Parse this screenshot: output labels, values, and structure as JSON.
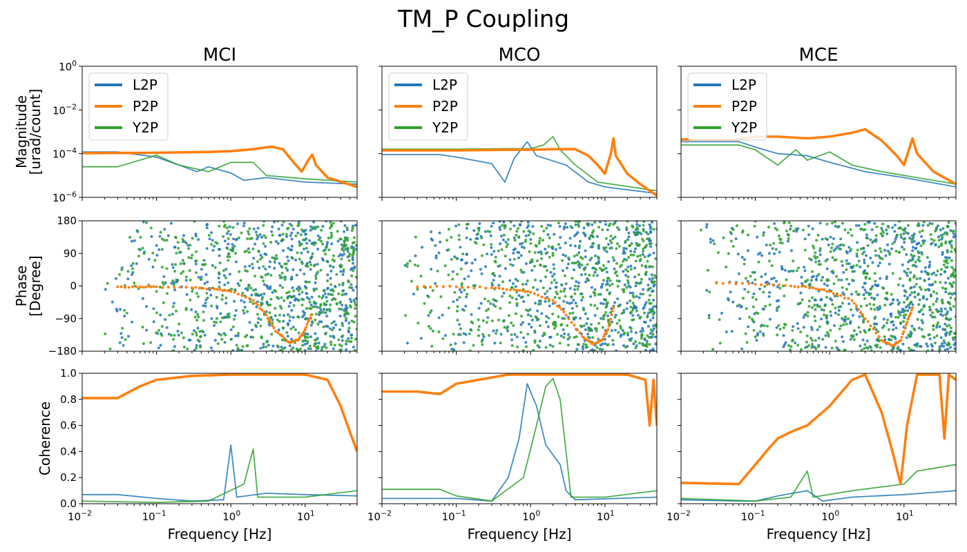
{
  "figure": {
    "title": "TM_P Coupling"
  },
  "colors": {
    "L2P": "#1f77b4",
    "P2P": "#ff7f0e",
    "Y2P": "#2ca02c"
  },
  "columns": [
    "MCI",
    "MCO",
    "MCE"
  ],
  "rows": {
    "magnitude": {
      "ylabel": [
        "Magnitude",
        "[urad/count]"
      ],
      "scale": "log",
      "ylim": [
        1e-06,
        1
      ],
      "ytick_exponents": [
        -6,
        -4,
        -2,
        0
      ]
    },
    "phase": {
      "ylabel": [
        "Phase",
        "[Degree]"
      ],
      "scale": "linear",
      "ylim": [
        -180,
        180
      ],
      "yticks": [
        -180,
        -90,
        0,
        90,
        180
      ],
      "ytick_labels": [
        "−180",
        "−90",
        "0",
        "90",
        "180"
      ]
    },
    "coherence": {
      "ylabel": [
        "Coherence"
      ],
      "scale": "linear",
      "ylim": [
        0,
        1
      ],
      "yticks": [
        0,
        0.2,
        0.4,
        0.6,
        0.8,
        1.0
      ],
      "ytick_labels": [
        "0.0",
        "0.2",
        "0.4",
        "0.6",
        "0.8",
        "1.0"
      ]
    }
  },
  "xaxis": {
    "label": "Frequency [Hz]",
    "scale": "log",
    "xlim": [
      0.01,
      50
    ],
    "tick_exponents": [
      -2,
      -1,
      0,
      1
    ]
  },
  "legend": {
    "entries": [
      "L2P",
      "P2P",
      "Y2P"
    ],
    "placement": "upper-left of magnitude panels"
  },
  "chart_data": [
    {
      "panel": "MCI",
      "type": "line",
      "magnitude": {
        "L2P": [
          [
            0.01,
            0.00012
          ],
          [
            0.03,
            0.00012
          ],
          [
            0.1,
            7e-05
          ],
          [
            0.2,
            3e-05
          ],
          [
            0.35,
            1.5e-05
          ],
          [
            0.5,
            2.5e-05
          ],
          [
            1,
            1.3e-05
          ],
          [
            1.5,
            6e-06
          ],
          [
            3,
            8e-06
          ],
          [
            10,
            5e-06
          ],
          [
            50,
            4e-06
          ]
        ],
        "P2P": [
          [
            0.01,
            0.000105
          ],
          [
            0.1,
            0.00011
          ],
          [
            0.5,
            0.00012
          ],
          [
            1,
            0.00013
          ],
          [
            2,
            0.00016
          ],
          [
            3.5,
            0.00021
          ],
          [
            5,
            0.00016
          ],
          [
            7,
            4e-05
          ],
          [
            9,
            1.5e-05
          ],
          [
            11,
            5e-05
          ],
          [
            12.5,
            9e-05
          ],
          [
            14,
            3e-05
          ],
          [
            20,
            8e-06
          ],
          [
            50,
            3e-06
          ]
        ],
        "Y2P": [
          [
            0.01,
            2.5e-05
          ],
          [
            0.03,
            2.5e-05
          ],
          [
            0.1,
            8.5e-05
          ],
          [
            0.2,
            3e-05
          ],
          [
            0.5,
            1.5e-05
          ],
          [
            1,
            4e-05
          ],
          [
            2,
            4e-05
          ],
          [
            3,
            1e-05
          ],
          [
            10,
            7e-06
          ],
          [
            50,
            5e-06
          ]
        ]
      },
      "phase": {
        "P2P": [
          [
            0.03,
            -2
          ],
          [
            0.06,
            -2
          ],
          [
            0.1,
            -2
          ],
          [
            0.3,
            -5
          ],
          [
            0.6,
            -8
          ],
          [
            1,
            -15
          ],
          [
            2,
            -40
          ],
          [
            3,
            -80
          ],
          [
            4,
            -125
          ],
          [
            6,
            -155
          ],
          [
            8,
            -150
          ],
          [
            10,
            -120
          ],
          [
            12,
            -80
          ]
        ],
        "L2P_scatter": "dense random phases increasing with frequency",
        "Y2P_scatter": "dense random phases increasing with frequency"
      },
      "coherence": {
        "L2P": [
          [
            0.01,
            0.07
          ],
          [
            0.03,
            0.07
          ],
          [
            0.1,
            0.04
          ],
          [
            0.3,
            0.02
          ],
          [
            0.8,
            0.03
          ],
          [
            1.0,
            0.45
          ],
          [
            1.2,
            0.05
          ],
          [
            3,
            0.08
          ],
          [
            10,
            0.07
          ],
          [
            50,
            0.06
          ]
        ],
        "P2P": [
          [
            0.01,
            0.81
          ],
          [
            0.03,
            0.81
          ],
          [
            0.06,
            0.9
          ],
          [
            0.1,
            0.95
          ],
          [
            0.3,
            0.98
          ],
          [
            1,
            0.99
          ],
          [
            10,
            0.99
          ],
          [
            20,
            0.95
          ],
          [
            30,
            0.75
          ],
          [
            40,
            0.55
          ],
          [
            50,
            0.4
          ]
        ],
        "Y2P": [
          [
            0.01,
            0.02
          ],
          [
            0.1,
            0.01
          ],
          [
            0.5,
            0.02
          ],
          [
            1.5,
            0.15
          ],
          [
            2.0,
            0.42
          ],
          [
            2.3,
            0.05
          ],
          [
            10,
            0.05
          ],
          [
            50,
            0.1
          ]
        ]
      }
    },
    {
      "panel": "MCO",
      "type": "line",
      "magnitude": {
        "L2P": [
          [
            0.01,
            9e-05
          ],
          [
            0.06,
            9e-05
          ],
          [
            0.1,
            7e-05
          ],
          [
            0.3,
            3.5e-05
          ],
          [
            0.45,
            5e-06
          ],
          [
            0.6,
            6e-05
          ],
          [
            0.9,
            0.00035
          ],
          [
            1.2,
            8e-05
          ],
          [
            3,
            3e-05
          ],
          [
            6,
            5e-06
          ],
          [
            10,
            3e-06
          ],
          [
            50,
            1.5e-06
          ]
        ],
        "P2P": [
          [
            0.01,
            0.00014
          ],
          [
            0.1,
            0.00014
          ],
          [
            0.5,
            0.00015
          ],
          [
            1,
            0.00015
          ],
          [
            2,
            0.00016
          ],
          [
            4,
            0.00016
          ],
          [
            6,
            8e-05
          ],
          [
            8,
            3e-05
          ],
          [
            10,
            1.2e-05
          ],
          [
            12,
            0.0001
          ],
          [
            13,
            0.0005
          ],
          [
            14,
            8e-05
          ],
          [
            20,
            1.2e-05
          ],
          [
            30,
            4e-06
          ],
          [
            50,
            1.2e-06
          ]
        ],
        "Y2P": [
          [
            0.01,
            0.00016
          ],
          [
            0.1,
            0.00016
          ],
          [
            0.5,
            0.00017
          ],
          [
            1,
            0.00017
          ],
          [
            1.5,
            0.00025
          ],
          [
            2,
            0.0006
          ],
          [
            2.5,
            0.00015
          ],
          [
            4,
            3e-05
          ],
          [
            8,
            5e-06
          ],
          [
            50,
            2e-06
          ]
        ]
      },
      "phase": {
        "P2P": [
          [
            0.03,
            -2
          ],
          [
            0.1,
            -2
          ],
          [
            0.3,
            -5
          ],
          [
            0.6,
            -10
          ],
          [
            1,
            -18
          ],
          [
            2,
            -40
          ],
          [
            3,
            -80
          ],
          [
            5,
            -140
          ],
          [
            7,
            -160
          ],
          [
            9,
            -150
          ],
          [
            11,
            -120
          ],
          [
            13,
            -60
          ]
        ],
        "L2P_scatter": "dense random phases increasing with frequency",
        "Y2P_scatter": "dense random phases increasing with frequency"
      },
      "coherence": {
        "L2P": [
          [
            0.01,
            0.04
          ],
          [
            0.1,
            0.04
          ],
          [
            0.3,
            0.02
          ],
          [
            0.5,
            0.2
          ],
          [
            0.7,
            0.5
          ],
          [
            0.9,
            0.92
          ],
          [
            1.2,
            0.75
          ],
          [
            1.6,
            0.45
          ],
          [
            2.5,
            0.3
          ],
          [
            3,
            0.1
          ],
          [
            4,
            0.03
          ],
          [
            50,
            0.05
          ]
        ],
        "P2P": [
          [
            0.01,
            0.86
          ],
          [
            0.03,
            0.86
          ],
          [
            0.06,
            0.84
          ],
          [
            0.1,
            0.92
          ],
          [
            0.5,
            0.99
          ],
          [
            1,
            0.99
          ],
          [
            20,
            0.99
          ],
          [
            35,
            0.95
          ],
          [
            40,
            0.6
          ],
          [
            45,
            0.95
          ],
          [
            50,
            0.6
          ]
        ],
        "Y2P": [
          [
            0.01,
            0.11
          ],
          [
            0.06,
            0.11
          ],
          [
            0.1,
            0.06
          ],
          [
            0.3,
            0.02
          ],
          [
            0.8,
            0.2
          ],
          [
            1.2,
            0.6
          ],
          [
            1.6,
            0.9
          ],
          [
            2,
            0.96
          ],
          [
            2.5,
            0.8
          ],
          [
            3,
            0.4
          ],
          [
            3.5,
            0.05
          ],
          [
            10,
            0.05
          ],
          [
            50,
            0.1
          ]
        ]
      }
    },
    {
      "panel": "MCE",
      "type": "line",
      "magnitude": {
        "L2P": [
          [
            0.01,
            0.00035
          ],
          [
            0.06,
            0.00035
          ],
          [
            0.1,
            0.0002
          ],
          [
            0.2,
            0.0001
          ],
          [
            0.5,
            8e-05
          ],
          [
            1,
            4e-05
          ],
          [
            3,
            1.5e-05
          ],
          [
            10,
            8e-06
          ],
          [
            50,
            3e-06
          ]
        ],
        "P2P": [
          [
            0.01,
            0.00045
          ],
          [
            0.06,
            0.00045
          ],
          [
            0.1,
            0.0006
          ],
          [
            0.2,
            0.0006
          ],
          [
            0.5,
            0.0005
          ],
          [
            1,
            0.0006
          ],
          [
            2,
            0.0009
          ],
          [
            3,
            0.0013
          ],
          [
            5,
            0.0004
          ],
          [
            8,
            8e-05
          ],
          [
            10,
            3e-05
          ],
          [
            13,
            0.0005
          ],
          [
            15,
            0.0001
          ],
          [
            25,
            1.5e-05
          ],
          [
            50,
            4e-06
          ]
        ],
        "Y2P": [
          [
            0.01,
            0.00025
          ],
          [
            0.06,
            0.00025
          ],
          [
            0.1,
            0.00015
          ],
          [
            0.2,
            3e-05
          ],
          [
            0.35,
            0.00015
          ],
          [
            0.5,
            5e-05
          ],
          [
            1,
            0.00012
          ],
          [
            2,
            3e-05
          ],
          [
            5,
            1.5e-05
          ],
          [
            10,
            1e-05
          ],
          [
            50,
            4e-06
          ]
        ]
      },
      "phase": {
        "P2P": [
          [
            0.03,
            10
          ],
          [
            0.1,
            5
          ],
          [
            0.3,
            0
          ],
          [
            0.6,
            -5
          ],
          [
            1,
            -15
          ],
          [
            2,
            -40
          ],
          [
            3,
            -90
          ],
          [
            5,
            -150
          ],
          [
            7,
            -165
          ],
          [
            9,
            -150
          ],
          [
            11,
            -100
          ],
          [
            13,
            -60
          ]
        ],
        "L2P_scatter": "dense random phases increasing with frequency",
        "Y2P_scatter": "dense random phases increasing with frequency"
      },
      "coherence": {
        "L2P": [
          [
            0.01,
            0.03
          ],
          [
            0.06,
            0.02
          ],
          [
            0.1,
            0.02
          ],
          [
            0.2,
            0.06
          ],
          [
            0.5,
            0.1
          ],
          [
            0.8,
            0.02
          ],
          [
            2,
            0.05
          ],
          [
            10,
            0.07
          ],
          [
            50,
            0.1
          ]
        ],
        "P2P": [
          [
            0.01,
            0.16
          ],
          [
            0.06,
            0.15
          ],
          [
            0.1,
            0.3
          ],
          [
            0.15,
            0.42
          ],
          [
            0.2,
            0.5
          ],
          [
            0.3,
            0.55
          ],
          [
            0.5,
            0.6
          ],
          [
            1,
            0.75
          ],
          [
            2,
            0.95
          ],
          [
            3,
            0.99
          ],
          [
            5,
            0.7
          ],
          [
            7,
            0.4
          ],
          [
            9,
            0.15
          ],
          [
            11,
            0.6
          ],
          [
            15,
            0.99
          ],
          [
            30,
            0.99
          ],
          [
            35,
            0.5
          ],
          [
            40,
            0.99
          ],
          [
            50,
            0.95
          ]
        ],
        "Y2P": [
          [
            0.01,
            0.04
          ],
          [
            0.1,
            0.02
          ],
          [
            0.3,
            0.05
          ],
          [
            0.5,
            0.25
          ],
          [
            0.6,
            0.05
          ],
          [
            2,
            0.1
          ],
          [
            10,
            0.15
          ],
          [
            15,
            0.25
          ],
          [
            50,
            0.3
          ]
        ]
      }
    }
  ]
}
